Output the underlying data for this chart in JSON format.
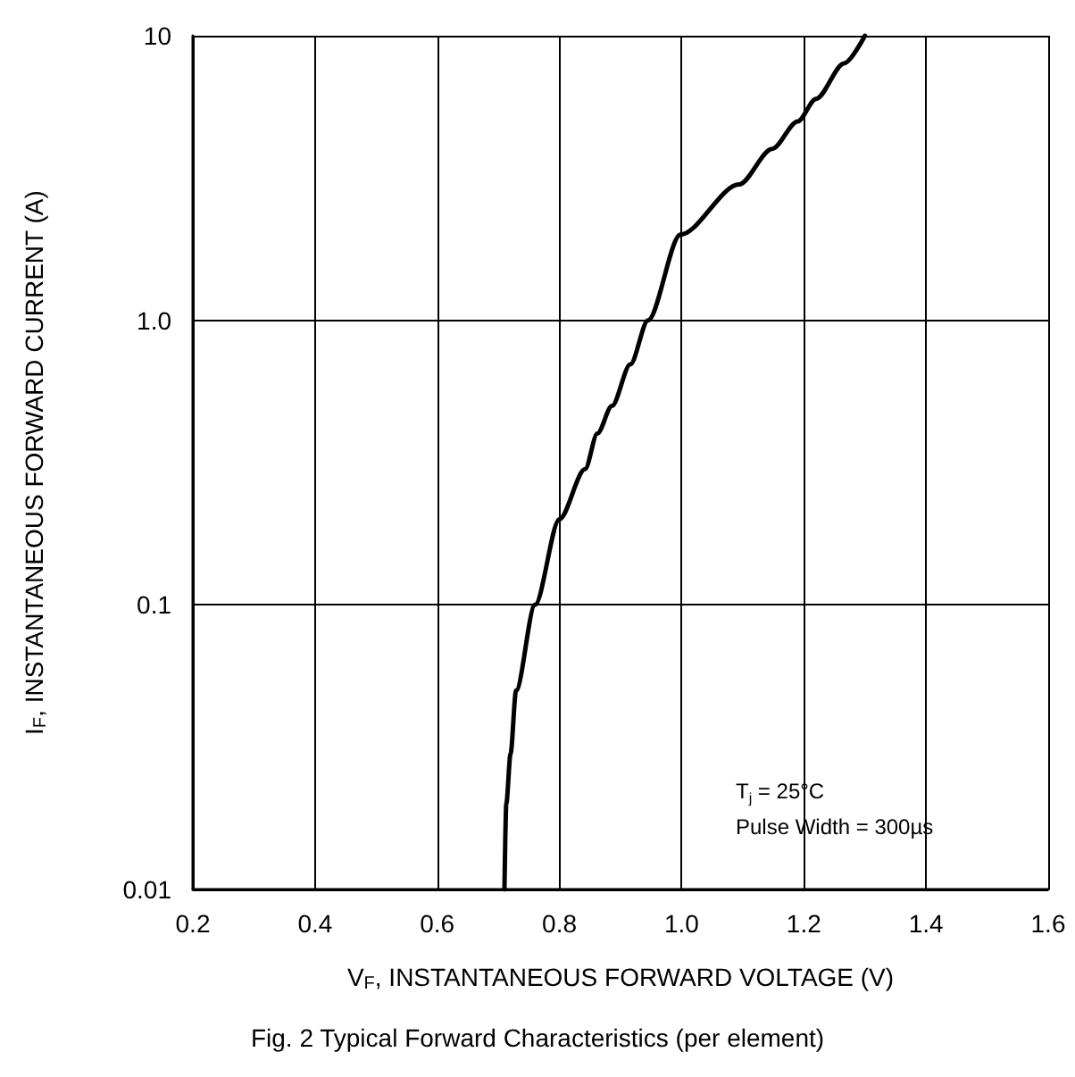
{
  "chart_data": {
    "type": "line",
    "title": "Fig. 2 Typical Forward Characteristics (per element)",
    "xlabel": "V$_{F}$, INSTANTANEOUS FORWARD VOLTAGE (V)",
    "ylabel": "I$_{F}$, INSTANTANEOUS FORWARD CURRENT (A)",
    "annotations": [
      "T$_{j}$ = 25°C",
      "Pulse Width = 300µs"
    ],
    "series": [
      {
        "color": "#000000",
        "x": [
          0.71,
          0.713,
          0.72,
          0.729,
          0.76,
          0.8,
          0.842,
          0.862,
          0.886,
          0.916,
          0.945,
          0.998,
          1.094,
          1.148,
          1.19,
          1.22,
          1.266,
          1.3
        ],
        "values": [
          0.01,
          0.02,
          0.03,
          0.05,
          0.1,
          0.2,
          0.3,
          0.4,
          0.5,
          0.7,
          1.0,
          2,
          3,
          4,
          5,
          6,
          8,
          10
        ]
      }
    ],
    "xlim": [
      0.2,
      1.6
    ],
    "xticks": [
      0.2,
      0.4,
      0.6,
      0.8,
      {
        "value": 1.0,
        "label": "1.0"
      },
      1.2,
      1.4,
      1.6
    ],
    "ylim": [
      0.01,
      10
    ],
    "yticks": [
      0.01,
      0.1,
      {
        "value": 1,
        "label": "1.0"
      },
      10
    ],
    "log": "y",
    "grid": true,
    "marker": "none",
    "line_style": "solid"
  }
}
